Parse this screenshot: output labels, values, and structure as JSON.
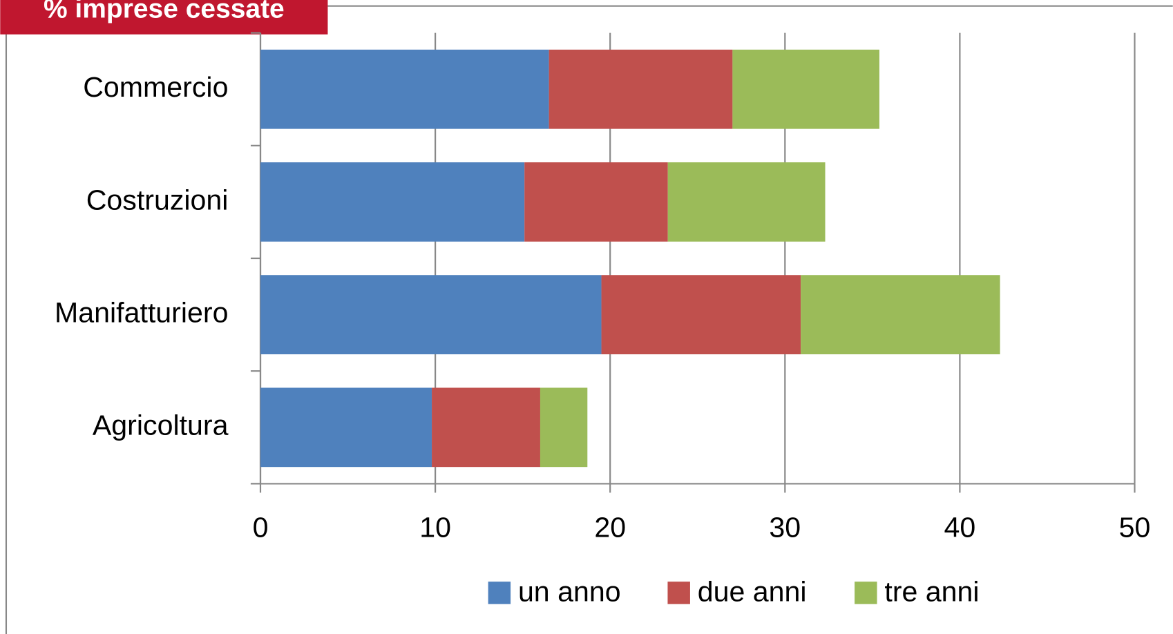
{
  "chart_data": {
    "type": "stacked-bar-horizontal",
    "title": "% imprese cessate",
    "categories": [
      "Commercio",
      "Costruzioni",
      "Manifatturiero",
      "Agricoltura"
    ],
    "series": [
      {
        "name": "un anno",
        "color": "#4f81bd",
        "values": [
          16.5,
          15.1,
          19.5,
          9.8
        ]
      },
      {
        "name": "due anni",
        "color": "#c0504d",
        "values": [
          10.5,
          8.2,
          11.4,
          6.2
        ]
      },
      {
        "name": "tre anni",
        "color": "#9bbb59",
        "values": [
          8.4,
          9.0,
          11.4,
          2.7
        ]
      }
    ],
    "xlim": [
      0,
      50
    ],
    "xticks": [
      0,
      10,
      20,
      30,
      40,
      50
    ],
    "grid": true,
    "legend": "bottom"
  }
}
